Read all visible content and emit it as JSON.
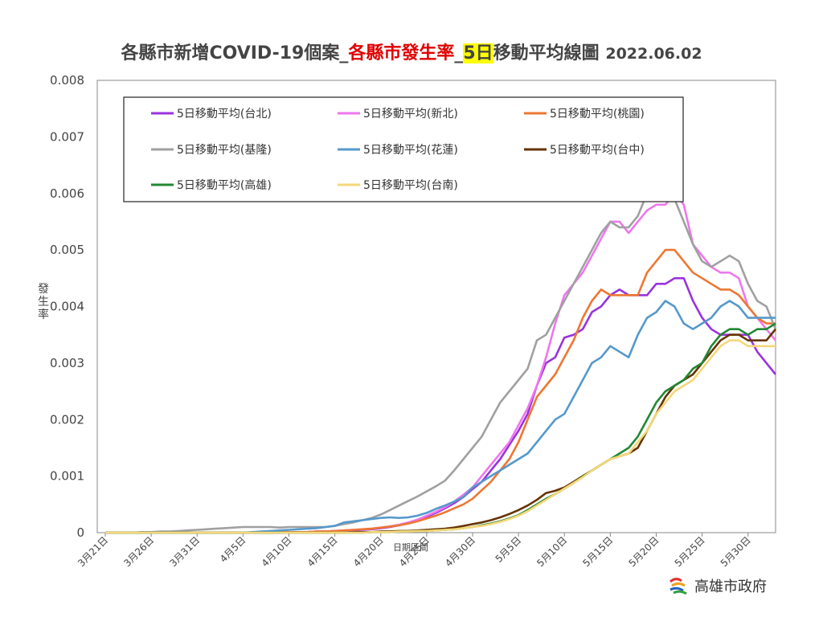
{
  "chart_data": {
    "type": "line",
    "title": {
      "part1": "各縣市新增COVID-19個案_",
      "part2": "各縣市發生率",
      "part3": "_",
      "part4": "5日",
      "part5": "移動平均線圖",
      "date": "2022.06.02"
    },
    "ylabel": "發生率",
    "xlabel": "日期區間",
    "ylim": [
      0,
      0.008
    ],
    "yticks": [
      "0",
      "0.001",
      "0.002",
      "0.003",
      "0.004",
      "0.005",
      "0.006",
      "0.007",
      "0.008"
    ],
    "xticks": [
      {
        "label": "3月21日",
        "i": 0
      },
      {
        "label": "3月26日",
        "i": 5
      },
      {
        "label": "3月31日",
        "i": 10
      },
      {
        "label": "4月5日",
        "i": 15
      },
      {
        "label": "4月10日",
        "i": 20
      },
      {
        "label": "4月15日",
        "i": 25
      },
      {
        "label": "4月20日",
        "i": 30
      },
      {
        "label": "4月25日",
        "i": 35
      },
      {
        "label": "4月30日",
        "i": 40
      },
      {
        "label": "5月5日",
        "i": 45
      },
      {
        "label": "5月10日",
        "i": 50
      },
      {
        "label": "5月15日",
        "i": 55
      },
      {
        "label": "5月20日",
        "i": 60
      },
      {
        "label": "5月25日",
        "i": 65
      },
      {
        "label": "5月30日",
        "i": 70
      }
    ],
    "x_count": 74,
    "grid": false,
    "legend_position": "top-inside",
    "series": [
      {
        "name": "5日移動平均(台北)",
        "color": "#9933dd",
        "values": [
          0,
          0,
          0,
          0,
          0,
          0,
          0,
          0,
          0,
          0,
          0,
          0,
          0,
          0,
          0,
          0,
          0,
          0,
          0,
          1e-05,
          1e-05,
          1e-05,
          1e-05,
          2e-05,
          2e-05,
          3e-05,
          3e-05,
          4e-05,
          5e-05,
          6e-05,
          8e-05,
          0.0001,
          0.00013,
          0.00017,
          0.00022,
          0.00028,
          0.00035,
          0.00043,
          0.00052,
          0.00063,
          0.00077,
          0.0009,
          0.0011,
          0.0013,
          0.00155,
          0.0018,
          0.0021,
          0.0026,
          0.003,
          0.0031,
          0.00345,
          0.0035,
          0.0036,
          0.0039,
          0.004,
          0.0042,
          0.0043,
          0.0042,
          0.0042,
          0.0042,
          0.0044,
          0.0044,
          0.0045,
          0.0045,
          0.0041,
          0.0038,
          0.0036,
          0.0035,
          0.0035,
          0.0035,
          0.0035,
          0.0032,
          0.003,
          0.0028
        ]
      },
      {
        "name": "5日移動平均(新北)",
        "color": "#ee77ee",
        "values": [
          0,
          0,
          0,
          0,
          0,
          0,
          0,
          0,
          0,
          0,
          0,
          0,
          0,
          0,
          0,
          0,
          0,
          0,
          0,
          1e-05,
          1e-05,
          1e-05,
          1e-05,
          2e-05,
          2e-05,
          3e-05,
          4e-05,
          5e-05,
          6e-05,
          7e-05,
          9e-05,
          0.00011,
          0.00014,
          0.00018,
          0.00023,
          0.0003,
          0.00037,
          0.00045,
          0.00055,
          0.00067,
          0.0008,
          0.001,
          0.0012,
          0.0014,
          0.0016,
          0.0019,
          0.0022,
          0.0026,
          0.0031,
          0.0037,
          0.0042,
          0.0044,
          0.0046,
          0.0049,
          0.0052,
          0.0055,
          0.0055,
          0.0053,
          0.0055,
          0.0057,
          0.0058,
          0.0058,
          0.006,
          0.0058,
          0.0051,
          0.0049,
          0.0047,
          0.0046,
          0.0046,
          0.0045,
          0.004,
          0.0038,
          0.0036,
          0.0034
        ]
      },
      {
        "name": "5日移動平均(桃園)",
        "color": "#ee7733",
        "values": [
          0,
          0,
          0,
          0,
          0,
          0,
          0,
          0,
          0,
          0,
          0,
          0,
          0,
          0,
          0,
          0,
          0,
          0,
          0,
          1e-05,
          1e-05,
          1e-05,
          1e-05,
          2e-05,
          2e-05,
          3e-05,
          4e-05,
          5e-05,
          6e-05,
          7e-05,
          9e-05,
          0.00011,
          0.00013,
          0.00016,
          0.0002,
          0.00025,
          0.0003,
          0.00036,
          0.00043,
          0.0005,
          0.0006,
          0.00075,
          0.0009,
          0.0011,
          0.0013,
          0.0016,
          0.002,
          0.0024,
          0.0026,
          0.0028,
          0.0031,
          0.0034,
          0.0038,
          0.0041,
          0.0043,
          0.0042,
          0.0042,
          0.0042,
          0.0042,
          0.0046,
          0.0048,
          0.005,
          0.005,
          0.0048,
          0.0046,
          0.0045,
          0.0044,
          0.0043,
          0.0043,
          0.0042,
          0.004,
          0.0038,
          0.0037,
          0.0037
        ]
      },
      {
        "name": "5日移動平均(基隆)",
        "color": "#a0a0a0",
        "values": [
          0,
          0,
          0,
          0,
          1e-05,
          1e-05,
          2e-05,
          2e-05,
          3e-05,
          4e-05,
          5e-05,
          6e-05,
          7e-05,
          8e-05,
          9e-05,
          0.0001,
          0.0001,
          0.0001,
          0.0001,
          9e-05,
          0.0001,
          0.0001,
          0.0001,
          0.0001,
          0.0001,
          0.00012,
          0.00015,
          0.00018,
          0.00022,
          0.00026,
          0.00032,
          0.0004,
          0.00048,
          0.00056,
          0.00064,
          0.00073,
          0.00082,
          0.00092,
          0.0011,
          0.0013,
          0.0015,
          0.0017,
          0.002,
          0.0023,
          0.0025,
          0.0027,
          0.0029,
          0.0034,
          0.0035,
          0.0038,
          0.0041,
          0.0044,
          0.0047,
          0.005,
          0.0053,
          0.0055,
          0.0054,
          0.0054,
          0.0056,
          0.006,
          0.006,
          0.006,
          0.0059,
          0.0055,
          0.0051,
          0.0048,
          0.0047,
          0.0048,
          0.0049,
          0.0048,
          0.0044,
          0.0041,
          0.004,
          0.0036
        ]
      },
      {
        "name": "5日移動平均(花蓮)",
        "color": "#5599cc",
        "values": [
          0,
          0,
          0,
          0,
          0,
          0,
          0,
          0,
          0,
          0,
          0,
          0,
          0,
          0,
          0,
          0,
          1e-05,
          2e-05,
          3e-05,
          4e-05,
          5e-05,
          6e-05,
          7e-05,
          8e-05,
          0.0001,
          0.00012,
          0.00018,
          0.0002,
          0.00022,
          0.00024,
          0.00026,
          0.00027,
          0.00026,
          0.00027,
          0.0003,
          0.00035,
          0.00042,
          0.00048,
          0.00055,
          0.00063,
          0.0008,
          0.0009,
          0.001,
          0.0011,
          0.0012,
          0.0013,
          0.0014,
          0.0016,
          0.0018,
          0.002,
          0.0021,
          0.0024,
          0.0027,
          0.003,
          0.0031,
          0.0033,
          0.0032,
          0.0031,
          0.0035,
          0.0038,
          0.0039,
          0.0041,
          0.004,
          0.0037,
          0.0036,
          0.0037,
          0.0038,
          0.004,
          0.0041,
          0.004,
          0.0038,
          0.0038,
          0.0038,
          0.0038
        ]
      },
      {
        "name": "5日移動平均(台中)",
        "color": "#663300",
        "values": [
          0,
          0,
          0,
          0,
          0,
          0,
          0,
          0,
          0,
          0,
          0,
          0,
          0,
          0,
          0,
          0,
          0,
          0,
          0,
          0,
          0,
          0,
          0,
          0,
          0,
          0,
          0,
          1e-05,
          1e-05,
          1e-05,
          2e-05,
          2e-05,
          3e-05,
          3e-05,
          4e-05,
          5e-05,
          6e-05,
          7e-05,
          9e-05,
          0.00012,
          0.00015,
          0.00018,
          0.00022,
          0.00027,
          0.00033,
          0.0004,
          0.00048,
          0.00058,
          0.0007,
          0.00074,
          0.0008,
          0.0009,
          0.001,
          0.0011,
          0.0012,
          0.0013,
          0.00135,
          0.0014,
          0.0015,
          0.0018,
          0.0021,
          0.0024,
          0.0026,
          0.0027,
          0.0028,
          0.003,
          0.0032,
          0.0034,
          0.0035,
          0.0035,
          0.0034,
          0.0034,
          0.0034,
          0.0036
        ]
      },
      {
        "name": "5日移動平均(高雄)",
        "color": "#228833",
        "values": [
          0,
          0,
          0,
          0,
          0,
          0,
          0,
          0,
          0,
          0,
          0,
          0,
          0,
          0,
          0,
          0,
          0,
          0,
          0,
          0,
          0,
          0,
          0,
          0,
          0,
          0,
          0,
          0,
          0,
          1e-05,
          1e-05,
          1e-05,
          2e-05,
          2e-05,
          3e-05,
          3e-05,
          4e-05,
          5e-05,
          6e-05,
          8e-05,
          0.0001,
          0.00013,
          0.00016,
          0.0002,
          0.00025,
          0.00031,
          0.0004,
          0.0005,
          0.0006,
          0.00068,
          0.00078,
          0.00088,
          0.00099,
          0.0011,
          0.0012,
          0.0013,
          0.0014,
          0.0015,
          0.0017,
          0.002,
          0.0023,
          0.0025,
          0.0026,
          0.0027,
          0.0029,
          0.003,
          0.0033,
          0.0035,
          0.0036,
          0.0036,
          0.0035,
          0.0036,
          0.0036,
          0.0037
        ]
      },
      {
        "name": "5日移動平均(台南)",
        "color": "#f5d77a",
        "values": [
          0,
          0,
          0,
          0,
          0,
          0,
          0,
          0,
          0,
          0,
          0,
          0,
          0,
          0,
          0,
          0,
          0,
          0,
          0,
          0,
          0,
          0,
          0,
          0,
          0,
          0,
          0,
          0,
          0,
          1e-05,
          1e-05,
          1e-05,
          2e-05,
          2e-05,
          3e-05,
          3e-05,
          4e-05,
          5e-05,
          6e-05,
          8e-05,
          0.0001,
          0.00012,
          0.00015,
          0.00019,
          0.00024,
          0.0003,
          0.00038,
          0.00048,
          0.00058,
          0.00068,
          0.00078,
          0.00088,
          0.00098,
          0.0011,
          0.0012,
          0.0013,
          0.00135,
          0.0014,
          0.0016,
          0.0018,
          0.0021,
          0.0023,
          0.0025,
          0.0026,
          0.0027,
          0.0029,
          0.0031,
          0.0033,
          0.0034,
          0.0034,
          0.0033,
          0.0033,
          0.0033,
          0.0033
        ]
      }
    ]
  },
  "branding": {
    "org": "高雄市政府"
  }
}
